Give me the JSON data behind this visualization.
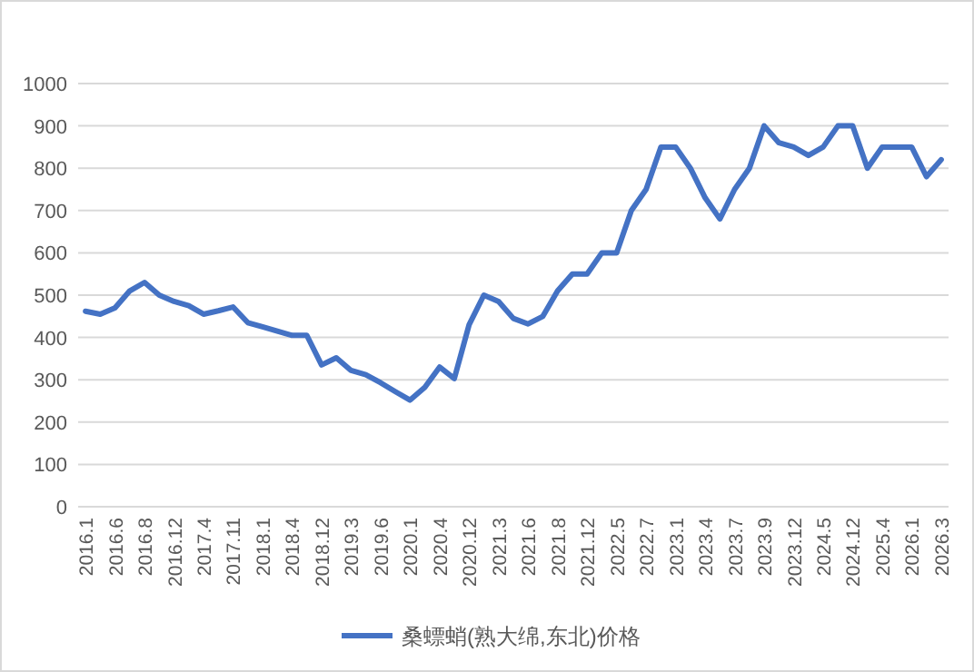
{
  "chart_data": {
    "type": "line",
    "categories": [
      "2016.1",
      null,
      "2016.6",
      null,
      "2016.8",
      null,
      "2016.12",
      null,
      "2017.4",
      null,
      "2017.11",
      null,
      "2018.1",
      null,
      "2018.4",
      null,
      "2018.12",
      null,
      "2019.3",
      null,
      "2019.6",
      null,
      "2020.1",
      null,
      "2020.4",
      null,
      "2020.12",
      null,
      "2021.3",
      null,
      "2021.6",
      null,
      "2021.8",
      null,
      "2021.12",
      null,
      "2022.5",
      null,
      "2022.7",
      null,
      "2023.1",
      null,
      "2023.4",
      null,
      "2023.7",
      null,
      "2023.9",
      null,
      "2023.12",
      null,
      "2024.5",
      null,
      "2024.12",
      null,
      "2025.4",
      null,
      "2026.1",
      null,
      "2026.3"
    ],
    "series": [
      {
        "name": "桑螵蛸(熟大绵,东北)价格",
        "color": "#4472c4",
        "values": [
          462,
          455,
          470,
          510,
          530,
          500,
          485,
          475,
          455,
          463,
          472,
          435,
          425,
          415,
          405,
          405,
          335,
          352,
          322,
          312,
          293,
          272,
          252,
          282,
          330,
          303,
          430,
          500,
          485,
          445,
          432,
          450,
          510,
          550,
          550,
          600,
          600,
          700,
          750,
          850,
          850,
          800,
          730,
          680,
          750,
          800,
          900,
          860,
          850,
          830,
          850,
          900,
          900,
          800,
          850,
          850,
          850,
          780,
          820
        ]
      }
    ],
    "ylim": [
      0,
      1000
    ],
    "yticks": [
      0,
      100,
      200,
      300,
      400,
      500,
      600,
      700,
      800,
      900,
      1000
    ],
    "grid": "y",
    "legend": "bottom"
  }
}
